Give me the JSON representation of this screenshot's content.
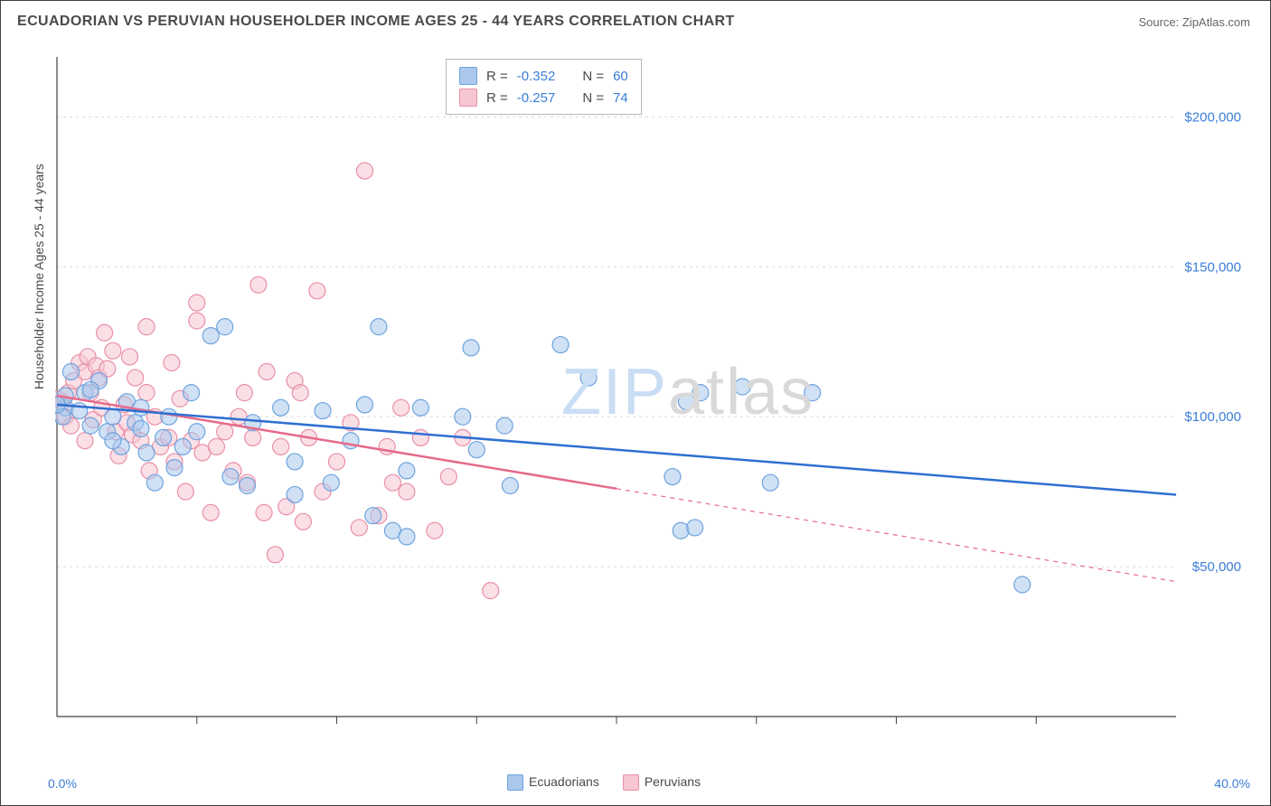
{
  "title": "ECUADORIAN VS PERUVIAN HOUSEHOLDER INCOME AGES 25 - 44 YEARS CORRELATION CHART",
  "source_label": "Source: ",
  "source_name": "ZipAtlas.com",
  "ylabel": "Householder Income Ages 25 - 44 years",
  "watermark_part1": "ZIP",
  "watermark_part2": "atlas",
  "watermark_color1": "#c9ddf4",
  "watermark_color2": "#d9d9d9",
  "plot": {
    "type": "scatter",
    "background_color": "#ffffff",
    "xlim": [
      0,
      40
    ],
    "ylim": [
      0,
      220000
    ],
    "x_tick_start": "0.0%",
    "x_tick_end": "40.0%",
    "x_minor_ticks": [
      5,
      10,
      15,
      20,
      25,
      30,
      35
    ],
    "y_gridlines": [
      {
        "value": 50000,
        "label": "$50,000"
      },
      {
        "value": 100000,
        "label": "$100,000"
      },
      {
        "value": 150000,
        "label": "$150,000"
      },
      {
        "value": 200000,
        "label": "$200,000"
      }
    ],
    "grid_color": "#d9d9d9",
    "axis_color": "#404040",
    "tick_label_color": "#3b7dd8",
    "marker_radius": 9,
    "marker_opacity": 0.55,
    "series": [
      {
        "name": "Ecuadorians",
        "fill_color": "#a9c8ec",
        "stroke_color": "#6fa3dd",
        "line_color": "#2e6fd1",
        "line_width": 2.5,
        "R": "-0.352",
        "N": "60",
        "trend": {
          "x1": 0,
          "y1": 104000,
          "x2": 40,
          "y2": 74000
        },
        "points": [
          [
            0.3,
            103000
          ],
          [
            0.2,
            100000
          ],
          [
            0.3,
            107000
          ],
          [
            0.5,
            115000
          ],
          [
            1.0,
            108000
          ],
          [
            1.2,
            97000
          ],
          [
            1.5,
            112000
          ],
          [
            0.0,
            104000
          ],
          [
            1.8,
            95000
          ],
          [
            2.0,
            100000
          ],
          [
            2.3,
            90000
          ],
          [
            2.5,
            105000
          ],
          [
            2.8,
            98000
          ],
          [
            3.0,
            96000
          ],
          [
            3.2,
            88000
          ],
          [
            3.5,
            78000
          ],
          [
            3.8,
            93000
          ],
          [
            4.0,
            100000
          ],
          [
            4.5,
            90000
          ],
          [
            4.8,
            108000
          ],
          [
            5.0,
            95000
          ],
          [
            6.0,
            130000
          ],
          [
            6.2,
            80000
          ],
          [
            6.8,
            77000
          ],
          [
            7.0,
            98000
          ],
          [
            8.0,
            103000
          ],
          [
            8.5,
            85000
          ],
          [
            9.5,
            102000
          ],
          [
            9.8,
            78000
          ],
          [
            10.5,
            92000
          ],
          [
            11.0,
            104000
          ],
          [
            11.3,
            67000
          ],
          [
            12.0,
            62000
          ],
          [
            11.5,
            130000
          ],
          [
            12.5,
            82000
          ],
          [
            13.0,
            103000
          ],
          [
            14.5,
            100000
          ],
          [
            14.8,
            123000
          ],
          [
            15.0,
            89000
          ],
          [
            16.0,
            97000
          ],
          [
            16.2,
            77000
          ],
          [
            18.0,
            124000
          ],
          [
            19.0,
            113000
          ],
          [
            22.0,
            80000
          ],
          [
            22.3,
            62000
          ],
          [
            22.8,
            63000
          ],
          [
            23.0,
            108000
          ],
          [
            24.5,
            110000
          ],
          [
            25.5,
            78000
          ],
          [
            27.0,
            108000
          ],
          [
            22.5,
            105000
          ],
          [
            34.5,
            44000
          ],
          [
            8.5,
            74000
          ],
          [
            12.5,
            60000
          ],
          [
            5.5,
            127000
          ],
          [
            3.0,
            103000
          ],
          [
            4.2,
            83000
          ],
          [
            0.8,
            102000
          ],
          [
            1.2,
            109000
          ],
          [
            2.0,
            92000
          ]
        ]
      },
      {
        "name": "Peruvians",
        "fill_color": "#f6c6d2",
        "stroke_color": "#e98fa6",
        "line_color": "#e66a8a",
        "line_width": 2.5,
        "R": "-0.257",
        "N": "74",
        "trend": {
          "x1": 0,
          "y1": 107000,
          "x2": 20,
          "y2": 76000
        },
        "trend_extra": {
          "x1": 20,
          "y1": 76000,
          "x2": 40,
          "y2": 45000,
          "dash": "5,5"
        },
        "points": [
          [
            0.2,
            105000
          ],
          [
            0.3,
            100000
          ],
          [
            0.4,
            108000
          ],
          [
            0.5,
            97000
          ],
          [
            0.6,
            112000
          ],
          [
            0.8,
            118000
          ],
          [
            1.0,
            115000
          ],
          [
            1.0,
            92000
          ],
          [
            1.1,
            120000
          ],
          [
            1.2,
            108000
          ],
          [
            1.3,
            99000
          ],
          [
            1.4,
            117000
          ],
          [
            1.5,
            113000
          ],
          [
            1.6,
            103000
          ],
          [
            1.8,
            116000
          ],
          [
            0.0,
            106000
          ],
          [
            2.0,
            122000
          ],
          [
            2.1,
            95000
          ],
          [
            2.2,
            87000
          ],
          [
            2.4,
            104000
          ],
          [
            2.5,
            98000
          ],
          [
            2.7,
            94000
          ],
          [
            2.8,
            113000
          ],
          [
            3.0,
            92000
          ],
          [
            3.2,
            108000
          ],
          [
            3.3,
            82000
          ],
          [
            3.5,
            100000
          ],
          [
            3.7,
            90000
          ],
          [
            4.0,
            93000
          ],
          [
            4.2,
            85000
          ],
          [
            4.4,
            106000
          ],
          [
            4.6,
            75000
          ],
          [
            4.8,
            92000
          ],
          [
            5.0,
            138000
          ],
          [
            5.2,
            88000
          ],
          [
            5.5,
            68000
          ],
          [
            5.7,
            90000
          ],
          [
            6.0,
            95000
          ],
          [
            6.3,
            82000
          ],
          [
            6.5,
            100000
          ],
          [
            6.8,
            78000
          ],
          [
            7.0,
            93000
          ],
          [
            7.2,
            144000
          ],
          [
            7.5,
            115000
          ],
          [
            7.8,
            54000
          ],
          [
            8.0,
            90000
          ],
          [
            8.2,
            70000
          ],
          [
            8.5,
            112000
          ],
          [
            8.8,
            65000
          ],
          [
            9.0,
            93000
          ],
          [
            9.3,
            142000
          ],
          [
            9.5,
            75000
          ],
          [
            10.0,
            85000
          ],
          [
            10.5,
            98000
          ],
          [
            10.8,
            63000
          ],
          [
            11.0,
            182000
          ],
          [
            11.5,
            67000
          ],
          [
            11.8,
            90000
          ],
          [
            12.0,
            78000
          ],
          [
            12.3,
            103000
          ],
          [
            12.5,
            75000
          ],
          [
            13.0,
            93000
          ],
          [
            13.5,
            62000
          ],
          [
            14.0,
            80000
          ],
          [
            14.5,
            93000
          ],
          [
            15.5,
            42000
          ],
          [
            3.2,
            130000
          ],
          [
            4.1,
            118000
          ],
          [
            1.7,
            128000
          ],
          [
            2.6,
            120000
          ],
          [
            6.7,
            108000
          ],
          [
            7.4,
            68000
          ],
          [
            8.7,
            108000
          ],
          [
            5.0,
            132000
          ]
        ]
      }
    ]
  },
  "corr_legend": {
    "R_label": "R =",
    "N_label": "N ="
  },
  "series_legend": {
    "items": [
      "Ecuadorians",
      "Peruvians"
    ]
  }
}
